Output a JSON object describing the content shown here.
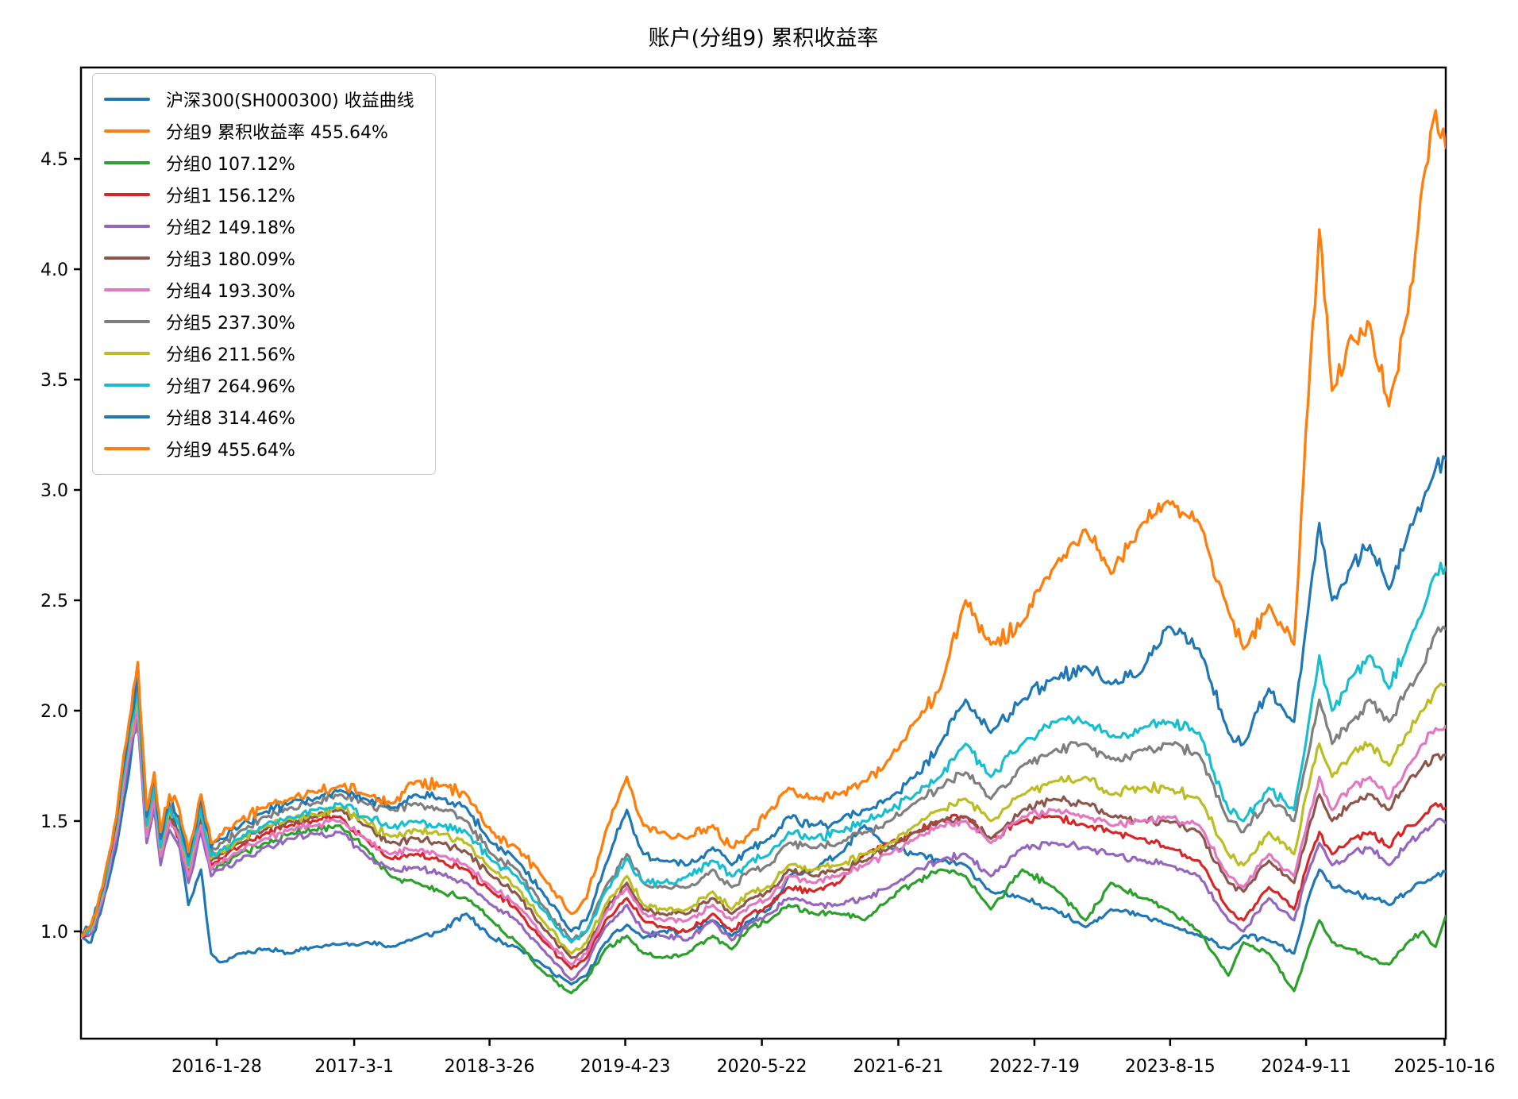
{
  "title": "账户(分组9) 累积收益率",
  "chart_data": {
    "type": "line",
    "title": "账户(分组9) 累积收益率",
    "grid": false,
    "legend_position": "upper left",
    "xlim": [
      2015.0,
      2025.8
    ],
    "ylim": [
      0.514,
      4.914
    ],
    "noise": 0.016,
    "y_ticks": [
      {
        "label": "1.0",
        "v": 1.0
      },
      {
        "label": "1.5",
        "v": 1.5
      },
      {
        "label": "2.0",
        "v": 2.0
      },
      {
        "label": "2.5",
        "v": 2.5
      },
      {
        "label": "3.0",
        "v": 3.0
      },
      {
        "label": "3.5",
        "v": 3.5
      },
      {
        "label": "4.0",
        "v": 4.0
      },
      {
        "label": "4.5",
        "v": 4.5
      }
    ],
    "x_ticks": [
      {
        "label": "2016-1-28",
        "t": 2016.074
      },
      {
        "label": "2017-3-1",
        "t": 2017.162
      },
      {
        "label": "2018-3-26",
        "t": 2018.233
      },
      {
        "label": "2019-4-23",
        "t": 2019.307
      },
      {
        "label": "2020-5-22",
        "t": 2020.388
      },
      {
        "label": "2021-6-21",
        "t": 2021.468
      },
      {
        "label": "2022-7-19",
        "t": 2022.545
      },
      {
        "label": "2023-8-15",
        "t": 2023.619
      },
      {
        "label": "2024-9-11",
        "t": 2024.695
      },
      {
        "label": "2025-10-16",
        "t": 2025.79
      }
    ],
    "x_years": [
      2015.0,
      2015.08,
      2015.17,
      2015.28,
      2015.38,
      2015.45,
      2015.52,
      2015.58,
      2015.63,
      2015.7,
      2015.78,
      2015.85,
      2015.95,
      2016.03,
      2016.1,
      2016.25,
      2016.45,
      2016.65,
      2016.85,
      2017.05,
      2017.25,
      2017.45,
      2017.65,
      2017.85,
      2018.05,
      2018.25,
      2018.45,
      2018.65,
      2018.88,
      2019.0,
      2019.15,
      2019.32,
      2019.45,
      2019.6,
      2019.8,
      2020.0,
      2020.15,
      2020.3,
      2020.45,
      2020.6,
      2020.8,
      2021.0,
      2021.2,
      2021.4,
      2021.6,
      2021.8,
      2022.0,
      2022.2,
      2022.45,
      2022.7,
      2022.95,
      2023.15,
      2023.4,
      2023.6,
      2023.85,
      2024.08,
      2024.2,
      2024.4,
      2024.6,
      2024.73,
      2024.8,
      2024.9,
      2025.05,
      2025.2,
      2025.35,
      2025.5,
      2025.62,
      2025.72,
      2025.8
    ],
    "series": [
      {
        "key": "hs300",
        "name": "沪深300(SH000300) 收益曲线",
        "color": "#1f77b4",
        "seed": 11,
        "vol": 0.9,
        "values": [
          0.98,
          0.95,
          1.12,
          1.38,
          1.72,
          2.02,
          1.48,
          1.68,
          1.42,
          1.58,
          1.4,
          1.12,
          1.28,
          0.9,
          0.86,
          0.9,
          0.92,
          0.9,
          0.93,
          0.94,
          0.95,
          0.93,
          0.97,
          1.0,
          1.08,
          0.97,
          0.93,
          0.85,
          0.76,
          0.8,
          0.95,
          1.03,
          0.97,
          1.0,
          1.0,
          1.05,
          0.98,
          1.05,
          1.1,
          1.25,
          1.28,
          1.35,
          1.48,
          1.38,
          1.35,
          1.32,
          1.3,
          1.18,
          1.15,
          1.1,
          1.02,
          1.1,
          1.07,
          1.03,
          0.98,
          0.92,
          0.98,
          0.96,
          0.9,
          1.18,
          1.28,
          1.2,
          1.18,
          1.15,
          1.12,
          1.18,
          1.22,
          1.25,
          1.27
        ]
      },
      {
        "key": "account",
        "name": "分组9 累积收益率 455.64%",
        "color": "#ff7f0e",
        "seed": 99,
        "vol": 1.15,
        "values_from": "g9"
      },
      {
        "key": "g0",
        "name": "分组0 107.12%",
        "color": "#2ca02c",
        "seed": 21,
        "vol": 0.85,
        "values": [
          0.98,
          1.02,
          1.18,
          1.48,
          1.88,
          2.05,
          1.45,
          1.62,
          1.35,
          1.52,
          1.42,
          1.25,
          1.48,
          1.28,
          1.3,
          1.35,
          1.4,
          1.44,
          1.46,
          1.48,
          1.38,
          1.25,
          1.22,
          1.18,
          1.15,
          1.05,
          0.95,
          0.82,
          0.72,
          0.78,
          0.92,
          0.98,
          0.9,
          0.88,
          0.9,
          0.98,
          0.92,
          1.02,
          1.05,
          1.12,
          1.08,
          1.08,
          1.05,
          1.15,
          1.22,
          1.28,
          1.25,
          1.1,
          1.28,
          1.2,
          1.05,
          1.22,
          1.15,
          1.1,
          1.0,
          0.8,
          0.95,
          0.9,
          0.73,
          0.95,
          1.05,
          0.95,
          0.92,
          0.88,
          0.85,
          0.95,
          1.0,
          0.93,
          1.07
        ]
      },
      {
        "key": "g1",
        "name": "分组1 156.12%",
        "color": "#d62728",
        "seed": 31,
        "vol": 0.85,
        "values": [
          0.98,
          1.0,
          1.16,
          1.46,
          1.85,
          1.98,
          1.42,
          1.6,
          1.33,
          1.5,
          1.42,
          1.26,
          1.5,
          1.3,
          1.33,
          1.38,
          1.44,
          1.48,
          1.5,
          1.52,
          1.42,
          1.33,
          1.35,
          1.32,
          1.28,
          1.18,
          1.1,
          0.96,
          0.83,
          0.88,
          1.05,
          1.15,
          1.05,
          1.02,
          1.0,
          1.08,
          1.0,
          1.08,
          1.12,
          1.2,
          1.18,
          1.22,
          1.35,
          1.4,
          1.45,
          1.5,
          1.52,
          1.42,
          1.5,
          1.52,
          1.48,
          1.45,
          1.42,
          1.38,
          1.32,
          1.1,
          1.05,
          1.2,
          1.1,
          1.35,
          1.45,
          1.35,
          1.42,
          1.45,
          1.38,
          1.48,
          1.52,
          1.58,
          1.56
        ]
      },
      {
        "key": "g2",
        "name": "分组2 149.18%",
        "color": "#9467bd",
        "seed": 41,
        "vol": 0.85,
        "values": [
          0.97,
          0.99,
          1.14,
          1.42,
          1.8,
          1.95,
          1.4,
          1.56,
          1.3,
          1.46,
          1.38,
          1.22,
          1.45,
          1.25,
          1.28,
          1.32,
          1.38,
          1.42,
          1.44,
          1.45,
          1.35,
          1.28,
          1.29,
          1.26,
          1.22,
          1.12,
          1.05,
          0.92,
          0.78,
          0.85,
          1.02,
          1.12,
          1.0,
          0.98,
          0.96,
          1.05,
          0.96,
          1.04,
          1.08,
          1.15,
          1.12,
          1.12,
          1.15,
          1.2,
          1.28,
          1.32,
          1.35,
          1.25,
          1.38,
          1.4,
          1.38,
          1.35,
          1.32,
          1.3,
          1.25,
          1.05,
          1.0,
          1.15,
          1.05,
          1.3,
          1.4,
          1.3,
          1.35,
          1.38,
          1.3,
          1.4,
          1.45,
          1.5,
          1.49
        ]
      },
      {
        "key": "g3",
        "name": "分组3 180.09%",
        "color": "#8c564b",
        "seed": 51,
        "vol": 0.85,
        "values": [
          0.98,
          1.01,
          1.17,
          1.47,
          1.86,
          2.02,
          1.45,
          1.63,
          1.36,
          1.53,
          1.45,
          1.28,
          1.52,
          1.32,
          1.35,
          1.4,
          1.46,
          1.5,
          1.52,
          1.55,
          1.48,
          1.4,
          1.42,
          1.4,
          1.36,
          1.25,
          1.17,
          1.02,
          0.88,
          0.92,
          1.1,
          1.22,
          1.1,
          1.08,
          1.08,
          1.15,
          1.08,
          1.15,
          1.18,
          1.28,
          1.25,
          1.28,
          1.32,
          1.38,
          1.45,
          1.5,
          1.52,
          1.42,
          1.55,
          1.6,
          1.58,
          1.52,
          1.5,
          1.5,
          1.45,
          1.22,
          1.18,
          1.32,
          1.22,
          1.5,
          1.62,
          1.5,
          1.58,
          1.62,
          1.55,
          1.68,
          1.75,
          1.8,
          1.8
        ]
      },
      {
        "key": "g4",
        "name": "分组4 193.30%",
        "color": "#e377c2",
        "seed": 61,
        "vol": 0.85,
        "values": [
          0.97,
          1.0,
          1.15,
          1.44,
          1.82,
          2.0,
          1.43,
          1.6,
          1.34,
          1.5,
          1.42,
          1.25,
          1.48,
          1.28,
          1.31,
          1.36,
          1.42,
          1.46,
          1.48,
          1.5,
          1.42,
          1.35,
          1.37,
          1.34,
          1.3,
          1.2,
          1.12,
          0.98,
          0.85,
          0.9,
          1.08,
          1.2,
          1.08,
          1.05,
          1.05,
          1.12,
          1.05,
          1.12,
          1.15,
          1.25,
          1.22,
          1.25,
          1.3,
          1.35,
          1.42,
          1.48,
          1.5,
          1.4,
          1.52,
          1.55,
          1.52,
          1.48,
          1.5,
          1.52,
          1.48,
          1.25,
          1.2,
          1.35,
          1.25,
          1.55,
          1.7,
          1.55,
          1.65,
          1.7,
          1.6,
          1.75,
          1.85,
          1.92,
          1.93
        ]
      },
      {
        "key": "g5",
        "name": "分组5 237.30%",
        "color": "#7f7f7f",
        "seed": 71,
        "vol": 0.95,
        "values": [
          0.98,
          1.02,
          1.18,
          1.5,
          1.9,
          2.12,
          1.5,
          1.68,
          1.4,
          1.58,
          1.5,
          1.32,
          1.58,
          1.36,
          1.4,
          1.45,
          1.52,
          1.56,
          1.58,
          1.62,
          1.58,
          1.55,
          1.58,
          1.55,
          1.5,
          1.35,
          1.28,
          1.12,
          0.96,
          1.0,
          1.2,
          1.35,
          1.22,
          1.2,
          1.2,
          1.28,
          1.2,
          1.28,
          1.3,
          1.4,
          1.38,
          1.4,
          1.45,
          1.5,
          1.58,
          1.65,
          1.72,
          1.6,
          1.75,
          1.82,
          1.85,
          1.78,
          1.82,
          1.85,
          1.8,
          1.5,
          1.45,
          1.6,
          1.5,
          1.85,
          2.05,
          1.85,
          1.95,
          2.05,
          1.95,
          2.1,
          2.2,
          2.35,
          2.37
        ]
      },
      {
        "key": "g6",
        "name": "分组6 211.56%",
        "color": "#bcbd22",
        "seed": 81,
        "vol": 0.95,
        "values": [
          0.98,
          1.01,
          1.17,
          1.48,
          1.87,
          2.06,
          1.47,
          1.65,
          1.37,
          1.55,
          1.47,
          1.29,
          1.54,
          1.33,
          1.36,
          1.41,
          1.47,
          1.51,
          1.53,
          1.56,
          1.5,
          1.43,
          1.46,
          1.44,
          1.4,
          1.28,
          1.2,
          1.05,
          0.9,
          0.95,
          1.12,
          1.25,
          1.12,
          1.1,
          1.1,
          1.18,
          1.1,
          1.18,
          1.2,
          1.3,
          1.28,
          1.3,
          1.35,
          1.4,
          1.48,
          1.55,
          1.6,
          1.5,
          1.62,
          1.68,
          1.7,
          1.62,
          1.65,
          1.65,
          1.6,
          1.35,
          1.3,
          1.45,
          1.35,
          1.7,
          1.85,
          1.7,
          1.8,
          1.85,
          1.75,
          1.9,
          2.0,
          2.1,
          2.12
        ]
      },
      {
        "key": "g7",
        "name": "分组7 264.96%",
        "color": "#17becf",
        "seed": 91,
        "vol": 1.0,
        "values": [
          0.98,
          1.02,
          1.18,
          1.49,
          1.88,
          2.08,
          1.48,
          1.66,
          1.38,
          1.56,
          1.48,
          1.3,
          1.55,
          1.34,
          1.37,
          1.42,
          1.48,
          1.52,
          1.55,
          1.58,
          1.52,
          1.47,
          1.5,
          1.48,
          1.45,
          1.32,
          1.25,
          1.1,
          0.95,
          1.0,
          1.18,
          1.33,
          1.22,
          1.22,
          1.25,
          1.32,
          1.25,
          1.32,
          1.35,
          1.45,
          1.42,
          1.45,
          1.5,
          1.55,
          1.62,
          1.7,
          1.85,
          1.7,
          1.85,
          1.95,
          1.95,
          1.88,
          1.92,
          1.95,
          1.9,
          1.55,
          1.5,
          1.65,
          1.55,
          2.0,
          2.25,
          2.0,
          2.15,
          2.25,
          2.1,
          2.3,
          2.45,
          2.62,
          2.65
        ]
      },
      {
        "key": "g8",
        "name": "分组8 314.46%",
        "color": "#1f77b4",
        "seed": 101,
        "vol": 1.05,
        "values": [
          0.98,
          1.03,
          1.19,
          1.51,
          1.92,
          2.15,
          1.52,
          1.7,
          1.42,
          1.6,
          1.52,
          1.34,
          1.6,
          1.38,
          1.42,
          1.47,
          1.54,
          1.58,
          1.6,
          1.64,
          1.6,
          1.56,
          1.62,
          1.6,
          1.56,
          1.4,
          1.32,
          1.18,
          1.0,
          1.05,
          1.3,
          1.55,
          1.35,
          1.32,
          1.3,
          1.38,
          1.3,
          1.38,
          1.42,
          1.52,
          1.48,
          1.5,
          1.55,
          1.6,
          1.7,
          1.85,
          2.05,
          1.9,
          2.05,
          2.15,
          2.2,
          2.12,
          2.18,
          2.38,
          2.28,
          1.9,
          1.85,
          2.1,
          1.95,
          2.55,
          2.85,
          2.5,
          2.65,
          2.75,
          2.55,
          2.8,
          2.95,
          3.1,
          3.14
        ]
      },
      {
        "key": "g9",
        "name": "分组9 455.64%",
        "color": "#ff7f0e",
        "seed": 99,
        "vol": 1.15,
        "values": [
          0.98,
          1.03,
          1.2,
          1.52,
          1.95,
          2.22,
          1.55,
          1.72,
          1.45,
          1.62,
          1.55,
          1.36,
          1.62,
          1.4,
          1.44,
          1.5,
          1.56,
          1.6,
          1.63,
          1.66,
          1.62,
          1.58,
          1.68,
          1.66,
          1.62,
          1.45,
          1.38,
          1.25,
          1.08,
          1.15,
          1.45,
          1.7,
          1.48,
          1.45,
          1.42,
          1.48,
          1.38,
          1.45,
          1.55,
          1.65,
          1.6,
          1.62,
          1.68,
          1.78,
          1.95,
          2.1,
          2.5,
          2.3,
          2.4,
          2.65,
          2.82,
          2.62,
          2.85,
          2.95,
          2.85,
          2.45,
          2.28,
          2.48,
          2.3,
          3.6,
          4.18,
          3.45,
          3.7,
          3.75,
          3.38,
          3.8,
          4.4,
          4.72,
          4.55
        ]
      }
    ]
  }
}
